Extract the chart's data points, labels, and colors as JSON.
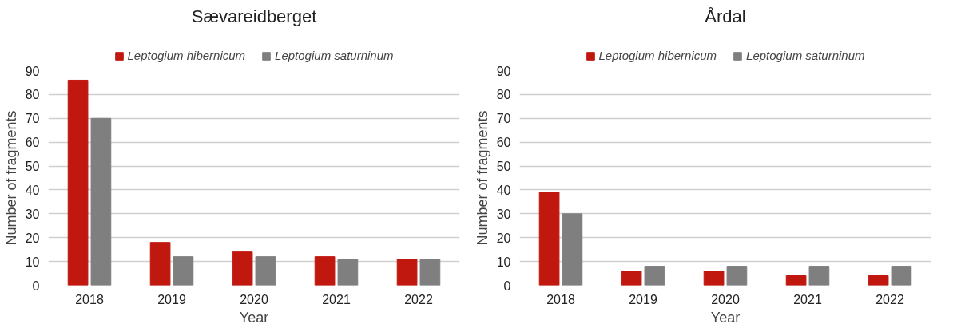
{
  "chart_data": [
    {
      "type": "bar",
      "title": "Sævareidberget",
      "xlabel": "Year",
      "ylabel": "Number of fragments",
      "categories": [
        "2018",
        "2019",
        "2020",
        "2021",
        "2022"
      ],
      "series": [
        {
          "name": "Leptogium hibernicum",
          "color": "#c0170f",
          "values": [
            86,
            18,
            14,
            12,
            11
          ]
        },
        {
          "name": "Leptogium saturninum",
          "color": "#7f7f7f",
          "values": [
            70,
            12,
            12,
            11,
            11
          ]
        }
      ],
      "ylim": [
        0,
        90
      ],
      "yticks": [
        0,
        10,
        20,
        30,
        40,
        50,
        60,
        70,
        80,
        90
      ],
      "grid": "y",
      "legend": "top"
    },
    {
      "type": "bar",
      "title": "Årdal",
      "xlabel": "Year",
      "ylabel": "Number of fragments",
      "categories": [
        "2018",
        "2019",
        "2020",
        "2021",
        "2022"
      ],
      "series": [
        {
          "name": "Leptogium hibernicum",
          "color": "#c0170f",
          "values": [
            39,
            6,
            6,
            4,
            4
          ]
        },
        {
          "name": "Leptogium saturninum",
          "color": "#7f7f7f",
          "values": [
            30,
            8,
            8,
            8,
            8
          ]
        }
      ],
      "ylim": [
        0,
        90
      ],
      "yticks": [
        0,
        10,
        20,
        30,
        40,
        50,
        60,
        70,
        80,
        90
      ],
      "grid": "y",
      "legend": "top"
    }
  ]
}
